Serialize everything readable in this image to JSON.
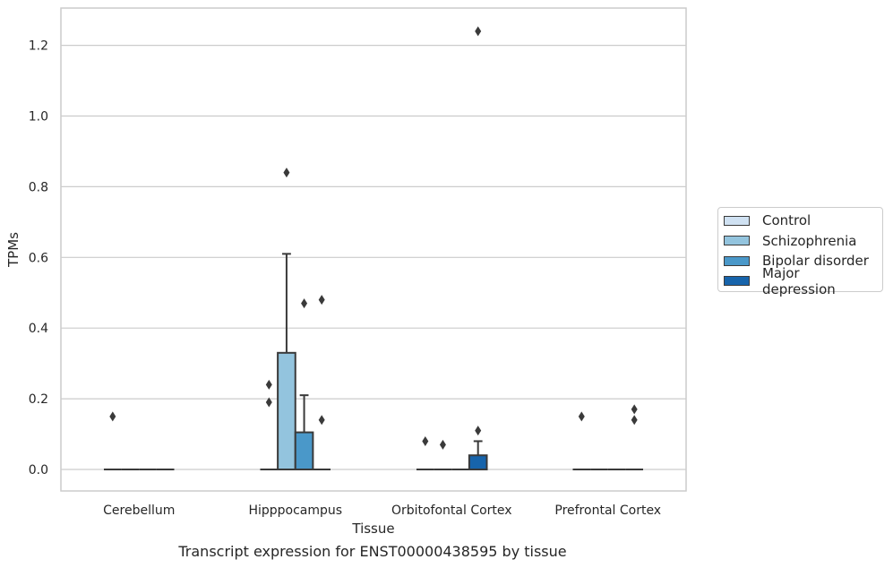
{
  "chart_data": {
    "type": "box",
    "caption": "Transcript expression for ENST00000438595 by tissue",
    "xlabel": "Tissue",
    "ylabel": "TPMs",
    "ylim": [
      -0.06,
      1.3
    ],
    "yticks": [
      "0.0",
      "0.2",
      "0.4",
      "0.6",
      "0.8",
      "1.0",
      "1.2"
    ],
    "ytick_values": [
      0.0,
      0.2,
      0.4,
      0.6,
      0.8,
      1.0,
      1.2
    ],
    "grid": "horizontal",
    "legend_placement": "right",
    "categories": [
      "Cerebellum",
      "Hipppocampus",
      "Orbitofontal Cortex",
      "Prefrontal Cortex"
    ],
    "series": [
      {
        "name": "Control",
        "color": "#cfe1f2",
        "boxes": [
          {
            "q1": 0,
            "median": 0,
            "q3": 0,
            "whisker_low": 0,
            "whisker_high": 0,
            "outliers": [
              0.15
            ]
          },
          {
            "q1": 0,
            "median": 0,
            "q3": 0,
            "whisker_low": 0,
            "whisker_high": 0,
            "outliers": [
              0.24,
              0.19
            ]
          },
          {
            "q1": 0,
            "median": 0,
            "q3": 0,
            "whisker_low": 0,
            "whisker_high": 0,
            "outliers": [
              0.08
            ]
          },
          {
            "q1": 0,
            "median": 0,
            "q3": 0,
            "whisker_low": 0,
            "whisker_high": 0,
            "outliers": [
              0.15
            ]
          }
        ]
      },
      {
        "name": "Schizophrenia",
        "color": "#93c4de",
        "boxes": [
          {
            "q1": 0,
            "median": 0,
            "q3": 0,
            "whisker_low": 0,
            "whisker_high": 0,
            "outliers": []
          },
          {
            "q1": 0,
            "median": 0,
            "q3": 0.33,
            "whisker_low": 0,
            "whisker_high": 0.61,
            "outliers": [
              0.84
            ]
          },
          {
            "q1": 0,
            "median": 0,
            "q3": 0,
            "whisker_low": 0,
            "whisker_high": 0,
            "outliers": [
              0.07
            ]
          },
          {
            "q1": 0,
            "median": 0,
            "q3": 0,
            "whisker_low": 0,
            "whisker_high": 0,
            "outliers": []
          }
        ]
      },
      {
        "name": "Bipolar disorder",
        "color": "#4a98c9",
        "boxes": [
          {
            "q1": 0,
            "median": 0,
            "q3": 0,
            "whisker_low": 0,
            "whisker_high": 0,
            "outliers": []
          },
          {
            "q1": 0,
            "median": 0,
            "q3": 0.105,
            "whisker_low": 0,
            "whisker_high": 0.21,
            "outliers": [
              0.47
            ]
          },
          {
            "q1": 0,
            "median": 0,
            "q3": 0,
            "whisker_low": 0,
            "whisker_high": 0,
            "outliers": []
          },
          {
            "q1": 0,
            "median": 0,
            "q3": 0,
            "whisker_low": 0,
            "whisker_high": 0,
            "outliers": []
          }
        ]
      },
      {
        "name": "Major depression",
        "color": "#1764ab",
        "boxes": [
          {
            "q1": 0,
            "median": 0,
            "q3": 0,
            "whisker_low": 0,
            "whisker_high": 0,
            "outliers": []
          },
          {
            "q1": 0,
            "median": 0,
            "q3": 0,
            "whisker_low": 0,
            "whisker_high": 0,
            "outliers": [
              0.48,
              0.14
            ]
          },
          {
            "q1": 0,
            "median": 0,
            "q3": 0.04,
            "whisker_low": 0,
            "whisker_high": 0.08,
            "outliers": [
              1.24,
              0.11
            ]
          },
          {
            "q1": 0,
            "median": 0,
            "q3": 0,
            "whisker_low": 0,
            "whisker_high": 0,
            "outliers": [
              0.17,
              0.14
            ]
          }
        ]
      }
    ]
  }
}
